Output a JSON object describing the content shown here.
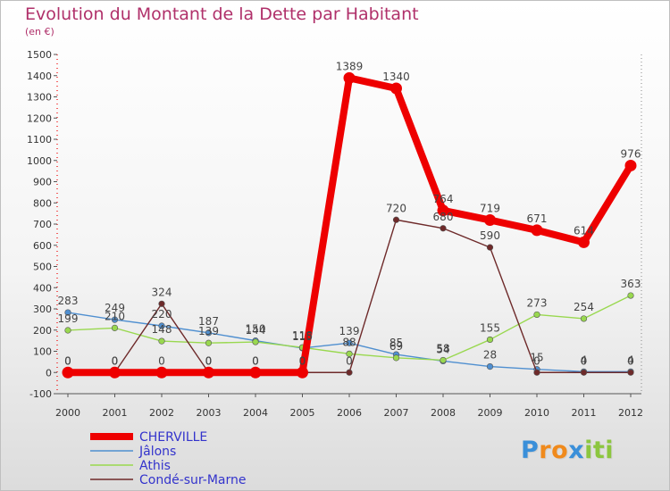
{
  "chart_data": {
    "type": "line",
    "title": "Evolution du Montant de la Dette par Habitant",
    "subtitle": "(en €)",
    "x": [
      "2000",
      "2001",
      "2002",
      "2003",
      "2004",
      "2005",
      "2006",
      "2007",
      "2008",
      "2009",
      "2010",
      "2011",
      "2012"
    ],
    "ylim": [
      -100,
      1500
    ],
    "yticks": [
      -100,
      0,
      100,
      200,
      300,
      400,
      500,
      600,
      700,
      800,
      900,
      1000,
      1100,
      1200,
      1300,
      1400,
      1500
    ],
    "grid": false,
    "legend_position": "bottom-left",
    "series": [
      {
        "name": "CHERVILLE",
        "color": "#ee0000",
        "values": [
          0,
          0,
          0,
          0,
          0,
          0,
          1389,
          1340,
          764,
          719,
          671,
          614,
          976
        ],
        "labels": [
          "0",
          "0",
          "0",
          "0",
          "0",
          "0",
          "1389",
          "1340",
          "764",
          "719",
          "671",
          "614",
          "976"
        ]
      },
      {
        "name": "Jâlons",
        "color": "#4f8fd0",
        "values": [
          283,
          249,
          220,
          187,
          150,
          115,
          139,
          85,
          54,
          28,
          15,
          4,
          4
        ],
        "labels": [
          "283",
          "249",
          "220",
          "187",
          "150",
          "115",
          "139",
          "85",
          "54",
          "28",
          "15",
          "4",
          "4"
        ]
      },
      {
        "name": "Athis",
        "color": "#99d84f",
        "values": [
          199,
          210,
          148,
          139,
          144,
          118,
          88,
          69,
          58,
          155,
          273,
          254,
          363
        ],
        "labels": [
          "199",
          "210",
          "148",
          "139",
          "144",
          "118",
          "88",
          "69",
          "58",
          "155",
          "273",
          "254",
          "363"
        ]
      },
      {
        "name": "Condé-sur-Marne",
        "color": "#6e2a2a",
        "values": [
          0,
          0,
          324,
          0,
          0,
          0,
          0,
          720,
          680,
          590,
          0,
          0,
          0
        ],
        "labels": [
          "0",
          "0",
          "324",
          "0",
          "0",
          "0",
          "0",
          "720",
          "680",
          "590",
          "0",
          "0",
          "0"
        ]
      }
    ]
  },
  "logo": {
    "letters": [
      "P",
      "r",
      "o",
      "x",
      "i",
      "t",
      "i"
    ],
    "colors": [
      "#3a8fd9",
      "#f08a1c",
      "#f08a1c",
      "#3a8fd9",
      "#8cc63f",
      "#8cc63f",
      "#8cc63f"
    ]
  }
}
